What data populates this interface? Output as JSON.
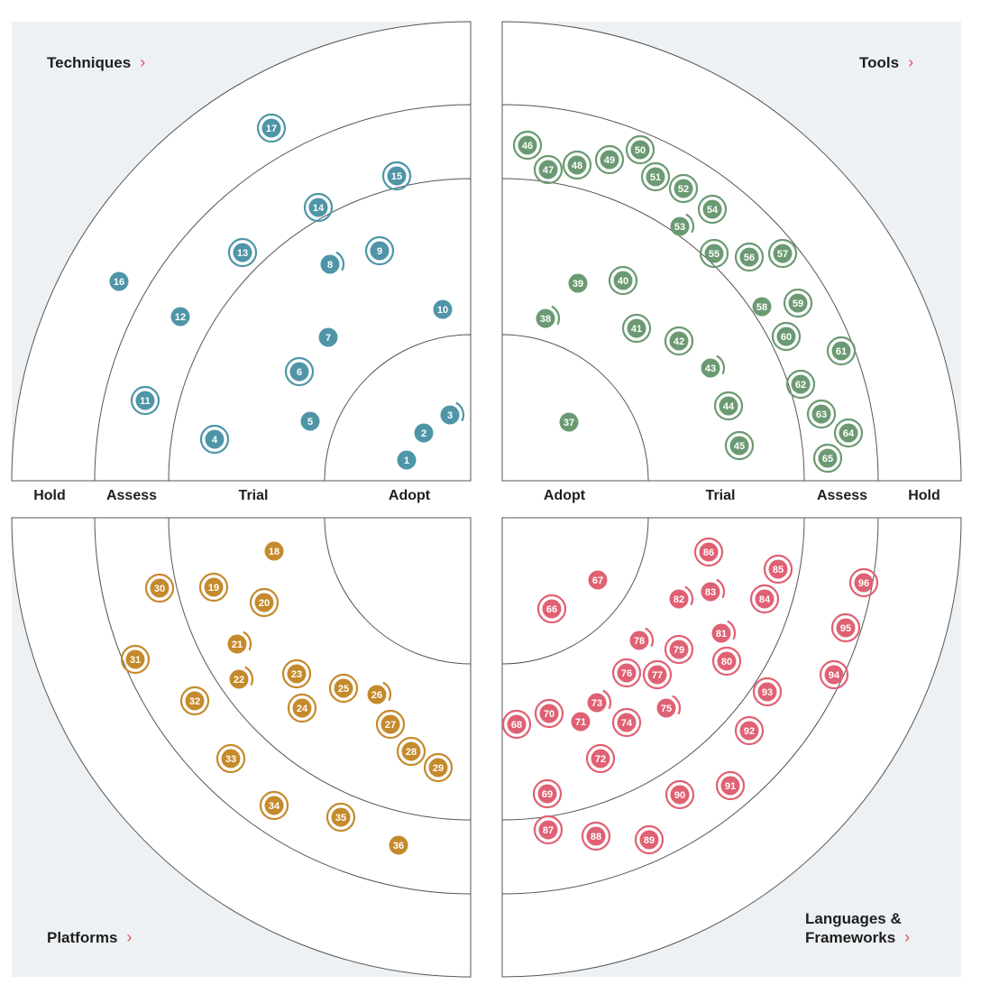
{
  "quadrants": {
    "techniques": {
      "title": "Techniques",
      "color": "#4f95a7"
    },
    "tools": {
      "title": "Tools",
      "color": "#6b9a72"
    },
    "platforms": {
      "title": "Platforms",
      "color": "#c48a2c"
    },
    "languages": {
      "title": "Languages & Frameworks",
      "title_line1": "Languages &",
      "title_line2": "Frameworks",
      "color": "#df6173"
    }
  },
  "chevron": "›",
  "rings": {
    "left": [
      "Hold",
      "Assess",
      "Trial",
      "Adopt"
    ],
    "right": [
      "Adopt",
      "Trial",
      "Assess",
      "Hold"
    ]
  },
  "colors": {
    "background": "#eef1f4",
    "ring_fill": "#ffffff",
    "ring_stroke": "#555555",
    "accent": "#e0525e"
  },
  "blips": [
    {
      "n": 1,
      "q": "techniques",
      "ring": "Adopt",
      "style": "plain"
    },
    {
      "n": 2,
      "q": "techniques",
      "ring": "Adopt",
      "style": "plain"
    },
    {
      "n": 3,
      "q": "techniques",
      "ring": "Adopt",
      "style": "moved-in"
    },
    {
      "n": 4,
      "q": "techniques",
      "ring": "Trial",
      "style": "new"
    },
    {
      "n": 5,
      "q": "techniques",
      "ring": "Trial",
      "style": "plain"
    },
    {
      "n": 6,
      "q": "techniques",
      "ring": "Trial",
      "style": "new"
    },
    {
      "n": 7,
      "q": "techniques",
      "ring": "Trial",
      "style": "plain"
    },
    {
      "n": 8,
      "q": "techniques",
      "ring": "Trial",
      "style": "moved-in"
    },
    {
      "n": 9,
      "q": "techniques",
      "ring": "Trial",
      "style": "new"
    },
    {
      "n": 10,
      "q": "techniques",
      "ring": "Trial",
      "style": "plain"
    },
    {
      "n": 11,
      "q": "techniques",
      "ring": "Assess",
      "style": "new"
    },
    {
      "n": 12,
      "q": "techniques",
      "ring": "Assess",
      "style": "plain"
    },
    {
      "n": 13,
      "q": "techniques",
      "ring": "Assess",
      "style": "new"
    },
    {
      "n": 14,
      "q": "techniques",
      "ring": "Assess",
      "style": "new"
    },
    {
      "n": 15,
      "q": "techniques",
      "ring": "Assess",
      "style": "new"
    },
    {
      "n": 16,
      "q": "techniques",
      "ring": "Hold",
      "style": "plain"
    },
    {
      "n": 17,
      "q": "techniques",
      "ring": "Hold",
      "style": "new"
    },
    {
      "n": 18,
      "q": "platforms",
      "ring": "Trial",
      "style": "plain"
    },
    {
      "n": 19,
      "q": "platforms",
      "ring": "Trial",
      "style": "new"
    },
    {
      "n": 20,
      "q": "platforms",
      "ring": "Trial",
      "style": "new"
    },
    {
      "n": 21,
      "q": "platforms",
      "ring": "Trial",
      "style": "moved-in"
    },
    {
      "n": 22,
      "q": "platforms",
      "ring": "Trial",
      "style": "moved-in"
    },
    {
      "n": 23,
      "q": "platforms",
      "ring": "Trial",
      "style": "new"
    },
    {
      "n": 24,
      "q": "platforms",
      "ring": "Trial",
      "style": "new"
    },
    {
      "n": 25,
      "q": "platforms",
      "ring": "Trial",
      "style": "new"
    },
    {
      "n": 26,
      "q": "platforms",
      "ring": "Trial",
      "style": "moved-in"
    },
    {
      "n": 27,
      "q": "platforms",
      "ring": "Trial",
      "style": "new"
    },
    {
      "n": 28,
      "q": "platforms",
      "ring": "Trial",
      "style": "new"
    },
    {
      "n": 29,
      "q": "platforms",
      "ring": "Trial",
      "style": "new"
    },
    {
      "n": 30,
      "q": "platforms",
      "ring": "Assess",
      "style": "new"
    },
    {
      "n": 31,
      "q": "platforms",
      "ring": "Assess",
      "style": "new"
    },
    {
      "n": 32,
      "q": "platforms",
      "ring": "Assess",
      "style": "new"
    },
    {
      "n": 33,
      "q": "platforms",
      "ring": "Assess",
      "style": "new"
    },
    {
      "n": 34,
      "q": "platforms",
      "ring": "Assess",
      "style": "new"
    },
    {
      "n": 35,
      "q": "platforms",
      "ring": "Assess",
      "style": "new"
    },
    {
      "n": 36,
      "q": "platforms",
      "ring": "Hold",
      "style": "plain"
    },
    {
      "n": 37,
      "q": "tools",
      "ring": "Adopt",
      "style": "plain"
    },
    {
      "n": 38,
      "q": "tools",
      "ring": "Trial",
      "style": "moved-in"
    },
    {
      "n": 39,
      "q": "tools",
      "ring": "Trial",
      "style": "plain"
    },
    {
      "n": 40,
      "q": "tools",
      "ring": "Trial",
      "style": "new"
    },
    {
      "n": 41,
      "q": "tools",
      "ring": "Trial",
      "style": "new"
    },
    {
      "n": 42,
      "q": "tools",
      "ring": "Trial",
      "style": "new"
    },
    {
      "n": 43,
      "q": "tools",
      "ring": "Trial",
      "style": "moved-in"
    },
    {
      "n": 44,
      "q": "tools",
      "ring": "Trial",
      "style": "new"
    },
    {
      "n": 45,
      "q": "tools",
      "ring": "Trial",
      "style": "new"
    },
    {
      "n": 46,
      "q": "tools",
      "ring": "Assess",
      "style": "new"
    },
    {
      "n": 47,
      "q": "tools",
      "ring": "Assess",
      "style": "new"
    },
    {
      "n": 48,
      "q": "tools",
      "ring": "Assess",
      "style": "new"
    },
    {
      "n": 49,
      "q": "tools",
      "ring": "Assess",
      "style": "new"
    },
    {
      "n": 50,
      "q": "tools",
      "ring": "Assess",
      "style": "new"
    },
    {
      "n": 51,
      "q": "tools",
      "ring": "Assess",
      "style": "new"
    },
    {
      "n": 52,
      "q": "tools",
      "ring": "Assess",
      "style": "new"
    },
    {
      "n": 53,
      "q": "tools",
      "ring": "Assess",
      "style": "moved-in"
    },
    {
      "n": 54,
      "q": "tools",
      "ring": "Assess",
      "style": "new"
    },
    {
      "n": 55,
      "q": "tools",
      "ring": "Assess",
      "style": "new"
    },
    {
      "n": 56,
      "q": "tools",
      "ring": "Assess",
      "style": "new"
    },
    {
      "n": 57,
      "q": "tools",
      "ring": "Assess",
      "style": "new"
    },
    {
      "n": 58,
      "q": "tools",
      "ring": "Assess",
      "style": "plain"
    },
    {
      "n": 59,
      "q": "tools",
      "ring": "Assess",
      "style": "new"
    },
    {
      "n": 60,
      "q": "tools",
      "ring": "Assess",
      "style": "new"
    },
    {
      "n": 61,
      "q": "tools",
      "ring": "Assess",
      "style": "new"
    },
    {
      "n": 62,
      "q": "tools",
      "ring": "Assess",
      "style": "new"
    },
    {
      "n": 63,
      "q": "tools",
      "ring": "Assess",
      "style": "new"
    },
    {
      "n": 64,
      "q": "tools",
      "ring": "Assess",
      "style": "new"
    },
    {
      "n": 65,
      "q": "tools",
      "ring": "Assess",
      "style": "new"
    },
    {
      "n": 66,
      "q": "languages",
      "ring": "Adopt",
      "style": "new"
    },
    {
      "n": 67,
      "q": "languages",
      "ring": "Adopt",
      "style": "plain"
    },
    {
      "n": 68,
      "q": "languages",
      "ring": "Trial",
      "style": "new"
    },
    {
      "n": 69,
      "q": "languages",
      "ring": "Trial",
      "style": "new"
    },
    {
      "n": 70,
      "q": "languages",
      "ring": "Trial",
      "style": "new"
    },
    {
      "n": 71,
      "q": "languages",
      "ring": "Trial",
      "style": "plain"
    },
    {
      "n": 72,
      "q": "languages",
      "ring": "Trial",
      "style": "new"
    },
    {
      "n": 73,
      "q": "languages",
      "ring": "Trial",
      "style": "moved-in"
    },
    {
      "n": 74,
      "q": "languages",
      "ring": "Trial",
      "style": "new"
    },
    {
      "n": 75,
      "q": "languages",
      "ring": "Trial",
      "style": "moved-in"
    },
    {
      "n": 76,
      "q": "languages",
      "ring": "Trial",
      "style": "new"
    },
    {
      "n": 77,
      "q": "languages",
      "ring": "Trial",
      "style": "new"
    },
    {
      "n": 78,
      "q": "languages",
      "ring": "Trial",
      "style": "moved-in"
    },
    {
      "n": 79,
      "q": "languages",
      "ring": "Trial",
      "style": "new"
    },
    {
      "n": 80,
      "q": "languages",
      "ring": "Trial",
      "style": "new"
    },
    {
      "n": 81,
      "q": "languages",
      "ring": "Trial",
      "style": "moved-in"
    },
    {
      "n": 82,
      "q": "languages",
      "ring": "Trial",
      "style": "moved-in"
    },
    {
      "n": 83,
      "q": "languages",
      "ring": "Trial",
      "style": "moved-in"
    },
    {
      "n": 84,
      "q": "languages",
      "ring": "Trial",
      "style": "new"
    },
    {
      "n": 85,
      "q": "languages",
      "ring": "Assess",
      "style": "new"
    },
    {
      "n": 86,
      "q": "languages",
      "ring": "Trial",
      "style": "new"
    },
    {
      "n": 87,
      "q": "languages",
      "ring": "Assess",
      "style": "new"
    },
    {
      "n": 88,
      "q": "languages",
      "ring": "Assess",
      "style": "new"
    },
    {
      "n": 89,
      "q": "languages",
      "ring": "Assess",
      "style": "new"
    },
    {
      "n": 90,
      "q": "languages",
      "ring": "Assess",
      "style": "new"
    },
    {
      "n": 91,
      "q": "languages",
      "ring": "Assess",
      "style": "new"
    },
    {
      "n": 92,
      "q": "languages",
      "ring": "Assess",
      "style": "new"
    },
    {
      "n": 93,
      "q": "languages",
      "ring": "Assess",
      "style": "new"
    },
    {
      "n": 94,
      "q": "languages",
      "ring": "Hold",
      "style": "new"
    },
    {
      "n": 95,
      "q": "languages",
      "ring": "Hold",
      "style": "new"
    },
    {
      "n": 96,
      "q": "languages",
      "ring": "Hold",
      "style": "new"
    }
  ]
}
